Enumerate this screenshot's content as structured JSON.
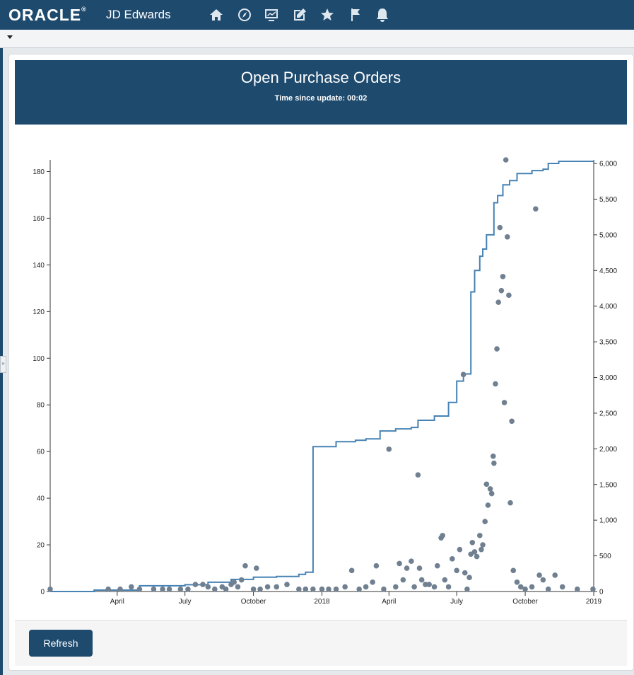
{
  "header": {
    "brand": "ORACLE",
    "product": "JD Edwards",
    "nav_icons": [
      "home-icon",
      "compass-icon",
      "chart-monitor-icon",
      "edit-icon",
      "star-icon",
      "flag-icon",
      "bell-icon"
    ]
  },
  "panel": {
    "title": "Open Purchase Orders",
    "time_label": "Time since update:",
    "time_value": "00:02"
  },
  "footer": {
    "refresh_label": "Refresh"
  },
  "colors": {
    "header_bg": "#1e4a6e",
    "line": "#4682b4",
    "dots": "#708090"
  },
  "chart_data": {
    "type": "line",
    "left_ylim": [
      0,
      185
    ],
    "right_ylim": [
      0,
      6050
    ],
    "left_ticks": [
      "0",
      "20",
      "40",
      "60",
      "80",
      "100",
      "120",
      "140",
      "160",
      "180"
    ],
    "right_ticks": [
      "0",
      "500",
      "1,000",
      "1,500",
      "2,000",
      "2,500",
      "3,000",
      "3,500",
      "4,000",
      "4,500",
      "5,000",
      "5,500",
      "6,000"
    ],
    "x_ticks": [
      "April",
      "July",
      "October",
      "2018",
      "April",
      "July",
      "October",
      "2019"
    ],
    "x_range": [
      "2017-01-01",
      "2019-01-01"
    ],
    "x_tick_dates": [
      "2017-04-01",
      "2017-07-01",
      "2017-10-01",
      "2018-01-01",
      "2018-04-01",
      "2018-07-01",
      "2018-10-01",
      "2019-01-01"
    ],
    "series": [
      {
        "axis": "right",
        "style": "step-line",
        "points": [
          [
            "2017-01-01",
            0
          ],
          [
            "2017-03-01",
            20
          ],
          [
            "2017-05-01",
            80
          ],
          [
            "2017-06-15",
            80
          ],
          [
            "2017-07-01",
            95
          ],
          [
            "2017-08-01",
            130
          ],
          [
            "2017-09-01",
            170
          ],
          [
            "2017-10-01",
            200
          ],
          [
            "2017-11-01",
            210
          ],
          [
            "2017-12-01",
            240
          ],
          [
            "2017-12-10",
            270
          ],
          [
            "2017-12-20",
            2030
          ],
          [
            "2018-01-05",
            2030
          ],
          [
            "2018-01-20",
            2100
          ],
          [
            "2018-02-15",
            2120
          ],
          [
            "2018-03-01",
            2140
          ],
          [
            "2018-03-20",
            2250
          ],
          [
            "2018-04-10",
            2280
          ],
          [
            "2018-05-01",
            2300
          ],
          [
            "2018-05-10",
            2400
          ],
          [
            "2018-06-01",
            2460
          ],
          [
            "2018-06-20",
            2650
          ],
          [
            "2018-07-01",
            2950
          ],
          [
            "2018-07-10",
            3050
          ],
          [
            "2018-07-20",
            4200
          ],
          [
            "2018-07-25",
            4500
          ],
          [
            "2018-08-01",
            4700
          ],
          [
            "2018-08-05",
            4800
          ],
          [
            "2018-08-10",
            5000
          ],
          [
            "2018-08-20",
            5450
          ],
          [
            "2018-08-25",
            5550
          ],
          [
            "2018-09-01",
            5700
          ],
          [
            "2018-09-10",
            5760
          ],
          [
            "2018-09-20",
            5860
          ],
          [
            "2018-10-10",
            5900
          ],
          [
            "2018-10-25",
            5920
          ],
          [
            "2018-11-01",
            6000
          ],
          [
            "2018-11-15",
            6030
          ],
          [
            "2019-01-01",
            6040
          ]
        ]
      },
      {
        "axis": "left",
        "style": "scatter",
        "points": [
          [
            "2017-01-01",
            1
          ],
          [
            "2017-03-20",
            1
          ],
          [
            "2017-04-05",
            1
          ],
          [
            "2017-04-20",
            2
          ],
          [
            "2017-05-01",
            1
          ],
          [
            "2017-05-20",
            1
          ],
          [
            "2017-06-01",
            1
          ],
          [
            "2017-06-10",
            1
          ],
          [
            "2017-06-25",
            1
          ],
          [
            "2017-07-05",
            1
          ],
          [
            "2017-07-15",
            3
          ],
          [
            "2017-07-25",
            3
          ],
          [
            "2017-08-01",
            2
          ],
          [
            "2017-08-10",
            1
          ],
          [
            "2017-08-20",
            2
          ],
          [
            "2017-08-25",
            1
          ],
          [
            "2017-09-01",
            3
          ],
          [
            "2017-09-05",
            4
          ],
          [
            "2017-09-10",
            2
          ],
          [
            "2017-09-15",
            5
          ],
          [
            "2017-09-20",
            11
          ],
          [
            "2017-10-01",
            1
          ],
          [
            "2017-10-05",
            10
          ],
          [
            "2017-10-10",
            1
          ],
          [
            "2017-10-20",
            2
          ],
          [
            "2017-11-01",
            2
          ],
          [
            "2017-11-15",
            3
          ],
          [
            "2017-12-01",
            1
          ],
          [
            "2017-12-10",
            1
          ],
          [
            "2017-12-20",
            1
          ],
          [
            "2018-01-01",
            1
          ],
          [
            "2018-01-10",
            1
          ],
          [
            "2018-01-20",
            1
          ],
          [
            "2018-02-01",
            2
          ],
          [
            "2018-02-10",
            9
          ],
          [
            "2018-02-20",
            1
          ],
          [
            "2018-03-01",
            2
          ],
          [
            "2018-03-10",
            4
          ],
          [
            "2018-03-15",
            11
          ],
          [
            "2018-03-25",
            1
          ],
          [
            "2018-04-01",
            61
          ],
          [
            "2018-04-10",
            2
          ],
          [
            "2018-04-15",
            12
          ],
          [
            "2018-04-20",
            5
          ],
          [
            "2018-04-25",
            10
          ],
          [
            "2018-05-01",
            13
          ],
          [
            "2018-05-05",
            2
          ],
          [
            "2018-05-10",
            50
          ],
          [
            "2018-05-12",
            10
          ],
          [
            "2018-05-15",
            5
          ],
          [
            "2018-05-20",
            3
          ],
          [
            "2018-05-25",
            3
          ],
          [
            "2018-06-01",
            2
          ],
          [
            "2018-06-05",
            11
          ],
          [
            "2018-06-10",
            23
          ],
          [
            "2018-06-12",
            24
          ],
          [
            "2018-06-15",
            5
          ],
          [
            "2018-06-20",
            2
          ],
          [
            "2018-06-25",
            14
          ],
          [
            "2018-07-01",
            9
          ],
          [
            "2018-07-05",
            18
          ],
          [
            "2018-07-10",
            93
          ],
          [
            "2018-07-12",
            8
          ],
          [
            "2018-07-15",
            1
          ],
          [
            "2018-07-18",
            6
          ],
          [
            "2018-07-20",
            16
          ],
          [
            "2018-07-22",
            21
          ],
          [
            "2018-07-25",
            17
          ],
          [
            "2018-07-28",
            15
          ],
          [
            "2018-08-01",
            24
          ],
          [
            "2018-08-03",
            18
          ],
          [
            "2018-08-05",
            20
          ],
          [
            "2018-08-08",
            30
          ],
          [
            "2018-08-10",
            46
          ],
          [
            "2018-08-12",
            37
          ],
          [
            "2018-08-15",
            44
          ],
          [
            "2018-08-17",
            42
          ],
          [
            "2018-08-19",
            58
          ],
          [
            "2018-08-20",
            55
          ],
          [
            "2018-08-22",
            89
          ],
          [
            "2018-08-24",
            104
          ],
          [
            "2018-08-26",
            124
          ],
          [
            "2018-08-28",
            156
          ],
          [
            "2018-08-30",
            129
          ],
          [
            "2018-09-01",
            135
          ],
          [
            "2018-09-03",
            81
          ],
          [
            "2018-09-05",
            185
          ],
          [
            "2018-09-07",
            152
          ],
          [
            "2018-09-09",
            127
          ],
          [
            "2018-09-11",
            38
          ],
          [
            "2018-09-13",
            73
          ],
          [
            "2018-09-15",
            9
          ],
          [
            "2018-09-20",
            4
          ],
          [
            "2018-09-25",
            2
          ],
          [
            "2018-10-01",
            1
          ],
          [
            "2018-10-10",
            2
          ],
          [
            "2018-10-15",
            164
          ],
          [
            "2018-10-20",
            7
          ],
          [
            "2018-10-25",
            5
          ],
          [
            "2018-11-01",
            1
          ],
          [
            "2018-11-10",
            7
          ],
          [
            "2018-11-20",
            2
          ],
          [
            "2018-12-10",
            1
          ],
          [
            "2018-12-31",
            1
          ]
        ]
      }
    ]
  }
}
